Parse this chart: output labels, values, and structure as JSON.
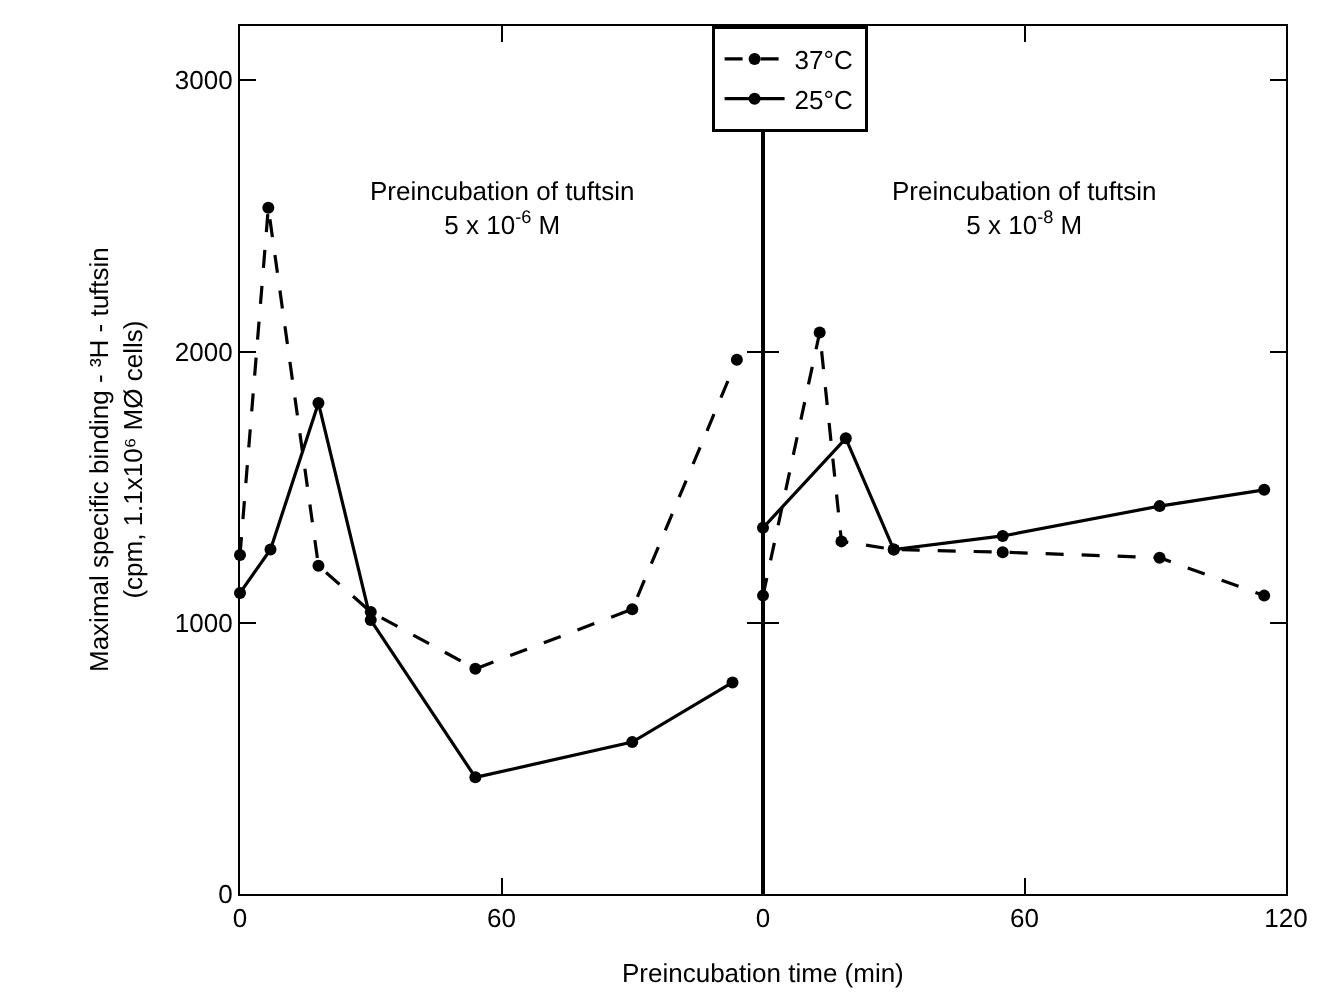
{
  "chart_data": [
    {
      "type": "line",
      "ylabel": "Maximal specific binding - ³H - tuftsin\n(cpm, 1.1x10⁶ MØ cells)",
      "xlabel": "Preincubation time (min)",
      "xlim": [
        0,
        120
      ],
      "xticks": [
        0,
        60
      ],
      "ylim": [
        0,
        3200
      ],
      "yticks": [
        0,
        1000,
        2000,
        3000
      ],
      "legend": "top right",
      "marker": "circle",
      "annotations": [
        "Preincubation of tuftsin\n5 x 10$^{-6}$ M"
      ],
      "series": [
        {
          "name": "37°C",
          "color": "#000000",
          "line_style": "dashed",
          "x": [
            0,
            6.5,
            18,
            30,
            54,
            90,
            114
          ],
          "values": [
            1250,
            2530,
            1210,
            1040,
            830,
            1050,
            1970
          ]
        },
        {
          "name": "25°C",
          "color": "#000000",
          "line_style": "solid",
          "x": [
            0,
            7,
            18,
            30,
            54,
            90,
            113
          ],
          "values": [
            1110,
            1270,
            1810,
            1010,
            430,
            560,
            780
          ]
        }
      ]
    },
    {
      "type": "line",
      "xlim": [
        0,
        120
      ],
      "xticks": [
        0,
        60,
        120
      ],
      "ylim": [
        0,
        3200
      ],
      "yticks": [
        0,
        1000,
        2000,
        3000
      ],
      "tick_labels": "x",
      "marker": "circle",
      "annotations": [
        "Preincubation of tuftsin\n5 x 10$^{-8}$ M"
      ],
      "series": [
        {
          "color": "#000000",
          "line_style": "dashed",
          "x": [
            0,
            13,
            18,
            30,
            55,
            91,
            115
          ],
          "values": [
            1100,
            2070,
            1300,
            1270,
            1260,
            1240,
            1100
          ]
        },
        {
          "color": "#000000",
          "line_style": "solid",
          "x": [
            0,
            19,
            30,
            55,
            91,
            115
          ],
          "values": [
            1350,
            1680,
            1270,
            1320,
            1430,
            1490
          ]
        }
      ]
    }
  ]
}
